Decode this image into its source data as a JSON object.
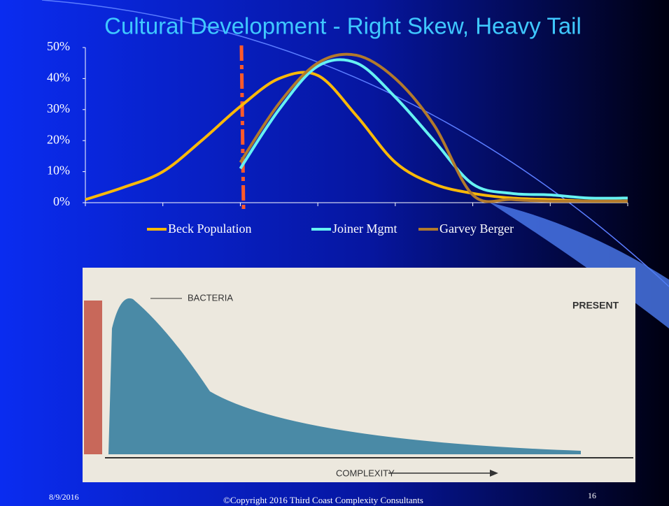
{
  "chart_data": {
    "type": "line",
    "title": "Cultural Development - Right Skew, Heavy Tail",
    "categories": [
      null,
      null,
      null,
      null,
      null,
      null,
      null,
      null,
      null,
      null,
      null,
      null,
      null,
      null,
      null
    ],
    "series": [
      {
        "name": "Beck Population",
        "color": "#fbb908",
        "values": [
          1,
          5,
          10,
          20,
          31,
          40,
          41,
          28,
          13,
          6,
          3,
          1.5,
          1,
          0.5,
          0.5
        ]
      },
      {
        "name": "Joiner Mgmt",
        "color": "#66f2f2",
        "values": [
          null,
          null,
          null,
          null,
          11,
          30,
          44,
          45,
          34,
          20,
          6,
          3,
          2.5,
          1.5,
          1.5
        ]
      },
      {
        "name": "Garvey Berger",
        "color": "#b27a2c",
        "values": [
          null,
          null,
          null,
          null,
          13,
          32,
          45,
          47.5,
          40,
          25,
          2.5,
          1,
          0.5,
          0.5,
          0.5
        ]
      }
    ],
    "ylim": [
      0,
      50
    ],
    "yticks": [
      {
        "value": 0,
        "label": "0%"
      },
      {
        "value": 10,
        "label": "10%"
      },
      {
        "value": 20,
        "label": "20%"
      },
      {
        "value": 30,
        "label": "30%"
      },
      {
        "value": 40,
        "label": "40%"
      },
      {
        "value": 50,
        "label": "50%"
      }
    ],
    "legend": "bottom"
  },
  "image": {
    "labels": [
      "BACTERIA",
      "PRESENT",
      "COMPLEXITY"
    ]
  },
  "footer": {
    "date": "8/9/2016",
    "copyright": "©Copyright 2016  Third Coast Complexity Consultants",
    "page": "16"
  }
}
